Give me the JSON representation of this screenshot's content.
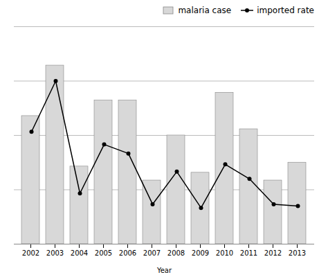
{
  "chart_data": {
    "type": "bar",
    "xlabel": "Year",
    "categories": [
      "2002",
      "2003",
      "2004",
      "2005",
      "2006",
      "2007",
      "2008",
      "2009",
      "2010",
      "2011",
      "2012",
      "2013"
    ],
    "series": [
      {
        "name": "malaria case",
        "type": "bar",
        "color": "#d8d8d8",
        "values": [
          165,
          230,
          100,
          185,
          185,
          82,
          140,
          92,
          195,
          148,
          82,
          105
        ]
      },
      {
        "name": "imported rate",
        "type": "line",
        "axis": "y2",
        "color": "#000000",
        "marker": "circle",
        "values": [
          62,
          90,
          28,
          55,
          50,
          22,
          40,
          20,
          44,
          36,
          22,
          21
        ]
      }
    ],
    "ylim": [
      0,
      280
    ],
    "yticks": [
      0,
      70,
      140,
      210,
      280
    ],
    "y2lim": [
      0,
      120
    ],
    "grid": true,
    "legend": "upper right",
    "tick_labels": "x"
  }
}
